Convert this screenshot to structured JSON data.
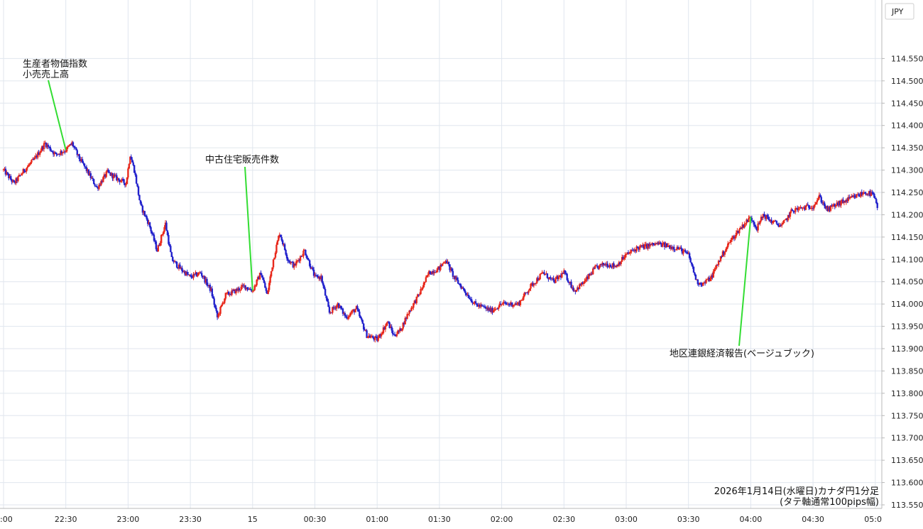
{
  "chart_data": {
    "type": "candlestick",
    "currency_label": "JPY",
    "footer_line1": "2026年1月14日(水曜日)カナダ円1分足",
    "footer_line2": "(タテ軸通常100pips幅)",
    "colors": {
      "up": "#e8291c",
      "down": "#2222cc",
      "annotation_line": "#33dd33",
      "grid": "#e0e6ee"
    },
    "grid": true,
    "ylim": [
      113.55,
      114.6
    ],
    "x_ticks": [
      ":00",
      "22:30",
      "23:00",
      "23:30",
      "15",
      "00:30",
      "01:00",
      "01:30",
      "02:00",
      "02:30",
      "03:00",
      "03:30",
      "04:00",
      "04:30",
      "05:0"
    ],
    "y_ticks": [
      "114.550",
      "114.500",
      "114.450",
      "114.400",
      "114.350",
      "114.300",
      "114.250",
      "114.200",
      "114.150",
      "114.100",
      "114.050",
      "114.000",
      "113.950",
      "113.900",
      "113.850",
      "113.800",
      "113.750",
      "113.700",
      "113.650",
      "113.600",
      "113.550"
    ],
    "annotations": [
      {
        "lines": [
          "生産者物価指数",
          "小売売上高"
        ],
        "time": "22:30",
        "price": 114.345
      },
      {
        "lines": [
          "中古住宅販売件数"
        ],
        "time": "00:00",
        "price": 114.03
      },
      {
        "lines": [
          "地区連銀経済報告(ベージュブック)"
        ],
        "time": "04:00",
        "price": 114.195
      }
    ],
    "price_path": [
      [
        "22:00",
        114.3
      ],
      [
        "22:05",
        114.27
      ],
      [
        "22:10",
        114.3
      ],
      [
        "22:15",
        114.325
      ],
      [
        "22:20",
        114.36
      ],
      [
        "22:25",
        114.335
      ],
      [
        "22:30",
        114.345
      ],
      [
        "22:33",
        114.36
      ],
      [
        "22:36",
        114.33
      ],
      [
        "22:40",
        114.3
      ],
      [
        "22:45",
        114.26
      ],
      [
        "22:50",
        114.295
      ],
      [
        "22:55",
        114.28
      ],
      [
        "22:59",
        114.27
      ],
      [
        "23:01",
        114.335
      ],
      [
        "23:03",
        114.3
      ],
      [
        "23:06",
        114.22
      ],
      [
        "23:10",
        114.18
      ],
      [
        "23:14",
        114.12
      ],
      [
        "23:18",
        114.18
      ],
      [
        "23:21",
        114.1
      ],
      [
        "23:25",
        114.08
      ],
      [
        "23:30",
        114.06
      ],
      [
        "23:35",
        114.07
      ],
      [
        "23:40",
        114.03
      ],
      [
        "23:43",
        113.97
      ],
      [
        "23:47",
        114.02
      ],
      [
        "23:52",
        114.03
      ],
      [
        "23:56",
        114.04
      ],
      [
        "00:00",
        114.03
      ],
      [
        "00:04",
        114.07
      ],
      [
        "00:07",
        114.02
      ],
      [
        "00:10",
        114.1
      ],
      [
        "00:13",
        114.16
      ],
      [
        "00:17",
        114.1
      ],
      [
        "00:20",
        114.085
      ],
      [
        "00:25",
        114.12
      ],
      [
        "00:30",
        114.06
      ],
      [
        "00:33",
        114.06
      ],
      [
        "00:37",
        113.98
      ],
      [
        "00:41",
        114.0
      ],
      [
        "00:45",
        113.97
      ],
      [
        "00:50",
        113.99
      ],
      [
        "00:55",
        113.93
      ],
      [
        "01:00",
        113.92
      ],
      [
        "01:05",
        113.96
      ],
      [
        "01:08",
        113.93
      ],
      [
        "01:11",
        113.94
      ],
      [
        "01:15",
        113.98
      ],
      [
        "01:20",
        114.02
      ],
      [
        "01:25",
        114.07
      ],
      [
        "01:30",
        114.08
      ],
      [
        "01:33",
        114.1
      ],
      [
        "01:37",
        114.06
      ],
      [
        "01:42",
        114.03
      ],
      [
        "01:47",
        114.0
      ],
      [
        "01:55",
        113.985
      ],
      [
        "02:00",
        114.0
      ],
      [
        "02:08",
        114.0
      ],
      [
        "02:14",
        114.04
      ],
      [
        "02:20",
        114.07
      ],
      [
        "02:25",
        114.05
      ],
      [
        "02:30",
        114.07
      ],
      [
        "02:35",
        114.03
      ],
      [
        "02:40",
        114.05
      ],
      [
        "02:45",
        114.08
      ],
      [
        "02:50",
        114.09
      ],
      [
        "02:55",
        114.085
      ],
      [
        "03:00",
        114.11
      ],
      [
        "03:05",
        114.125
      ],
      [
        "03:10",
        114.13
      ],
      [
        "03:15",
        114.135
      ],
      [
        "03:20",
        114.13
      ],
      [
        "03:25",
        114.125
      ],
      [
        "03:30",
        114.11
      ],
      [
        "03:34",
        114.05
      ],
      [
        "03:37",
        114.045
      ],
      [
        "03:41",
        114.06
      ],
      [
        "03:45",
        114.1
      ],
      [
        "03:50",
        114.14
      ],
      [
        "03:55",
        114.17
      ],
      [
        "04:00",
        114.195
      ],
      [
        "04:03",
        114.17
      ],
      [
        "04:06",
        114.2
      ],
      [
        "04:10",
        114.185
      ],
      [
        "04:15",
        114.175
      ],
      [
        "04:20",
        114.21
      ],
      [
        "04:25",
        114.215
      ],
      [
        "04:30",
        114.22
      ],
      [
        "04:33",
        114.24
      ],
      [
        "04:37",
        114.21
      ],
      [
        "04:40",
        114.22
      ],
      [
        "04:45",
        114.23
      ],
      [
        "04:50",
        114.24
      ],
      [
        "04:55",
        114.25
      ],
      [
        "04:59",
        114.245
      ],
      [
        "05:01",
        114.215
      ]
    ]
  }
}
